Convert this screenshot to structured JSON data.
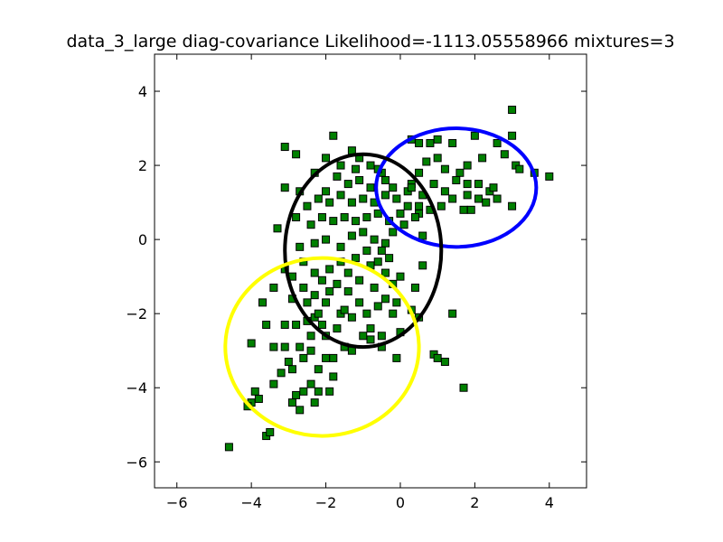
{
  "chart_data": {
    "type": "scatter",
    "title": "data_3_large diag-covariance Likelihood=-1113.05558966 mixtures=3",
    "xlabel": "",
    "ylabel": "",
    "xlim": [
      -6.6,
      5.0
    ],
    "ylim": [
      -6.7,
      5.0
    ],
    "x_ticks": [
      -6,
      -4,
      -2,
      0,
      2,
      4
    ],
    "y_ticks": [
      -6,
      -4,
      -2,
      0,
      2,
      4
    ],
    "x_tick_labels": [
      "−6",
      "−4",
      "−2",
      "0",
      "2",
      "4"
    ],
    "y_tick_labels": [
      "−6",
      "−4",
      "−2",
      "0",
      "2",
      "4"
    ],
    "grid": false,
    "marker": {
      "shape": "square",
      "fill": "#008000",
      "edge": "#000000"
    },
    "points": [
      [
        -4.6,
        -5.6
      ],
      [
        -3.6,
        -5.3
      ],
      [
        -3.5,
        -5.2
      ],
      [
        -4.0,
        -4.4
      ],
      [
        -4.1,
        -4.5
      ],
      [
        -3.8,
        -4.3
      ],
      [
        -3.9,
        -4.1
      ],
      [
        -3.4,
        -3.9
      ],
      [
        -3.2,
        -3.6
      ],
      [
        -2.9,
        -3.5
      ],
      [
        -2.7,
        -4.6
      ],
      [
        -2.9,
        -4.4
      ],
      [
        -2.8,
        -4.2
      ],
      [
        -2.6,
        -4.1
      ],
      [
        -2.4,
        -3.9
      ],
      [
        -2.2,
        -4.1
      ],
      [
        -2.3,
        -4.4
      ],
      [
        -1.9,
        -4.1
      ],
      [
        -1.8,
        -3.7
      ],
      [
        -2.2,
        -3.5
      ],
      [
        -2.6,
        -3.2
      ],
      [
        -2.4,
        -3.0
      ],
      [
        -3.4,
        -2.9
      ],
      [
        -3.1,
        -2.9
      ],
      [
        -2.7,
        -2.9
      ],
      [
        -4.0,
        -2.8
      ],
      [
        -3.6,
        -2.3
      ],
      [
        -3.7,
        -1.7
      ],
      [
        -3.1,
        -2.3
      ],
      [
        -2.8,
        -2.3
      ],
      [
        -2.3,
        -2.1
      ],
      [
        -2.1,
        -2.3
      ],
      [
        -2.4,
        -2.6
      ],
      [
        -2.0,
        -3.2
      ],
      [
        -1.5,
        -2.9
      ],
      [
        -1.0,
        -2.6
      ],
      [
        -0.8,
        -2.4
      ],
      [
        -0.5,
        -2.6
      ],
      [
        -0.1,
        -3.2
      ],
      [
        0.0,
        -2.5
      ],
      [
        0.5,
        -2.1
      ],
      [
        0.9,
        -3.1
      ],
      [
        1.0,
        -3.2
      ],
      [
        1.2,
        -3.3
      ],
      [
        1.7,
        -4.0
      ],
      [
        1.4,
        -2.0
      ],
      [
        -1.6,
        -2.0
      ],
      [
        -1.3,
        -2.1
      ],
      [
        -0.9,
        -2.0
      ],
      [
        -0.6,
        -1.8
      ],
      [
        -0.4,
        -1.6
      ],
      [
        -0.1,
        -1.7
      ],
      [
        0.3,
        -1.9
      ],
      [
        0.4,
        -1.3
      ],
      [
        -2.0,
        -1.7
      ],
      [
        -2.3,
        -1.5
      ],
      [
        -2.6,
        -1.3
      ],
      [
        -2.9,
        -1.0
      ],
      [
        -3.1,
        -0.8
      ],
      [
        -2.6,
        -0.6
      ],
      [
        -2.3,
        -0.9
      ],
      [
        -1.9,
        -0.8
      ],
      [
        -1.6,
        -0.6
      ],
      [
        -1.2,
        -0.5
      ],
      [
        -0.9,
        -0.3
      ],
      [
        -0.6,
        -0.6
      ],
      [
        -0.4,
        -0.9
      ],
      [
        -0.2,
        -1.2
      ],
      [
        0.0,
        -1.0
      ],
      [
        -1.4,
        -1.4
      ],
      [
        -1.7,
        -1.2
      ],
      [
        -2.1,
        -1.1
      ],
      [
        -1.1,
        -1.1
      ],
      [
        -0.7,
        -1.3
      ],
      [
        -2.7,
        -0.2
      ],
      [
        -2.3,
        -0.1
      ],
      [
        -2.0,
        0.0
      ],
      [
        -1.6,
        -0.2
      ],
      [
        -1.3,
        0.1
      ],
      [
        -1.0,
        0.2
      ],
      [
        -0.7,
        0.0
      ],
      [
        -0.4,
        -0.1
      ],
      [
        -0.2,
        0.2
      ],
      [
        0.1,
        0.4
      ],
      [
        0.6,
        0.1
      ],
      [
        0.6,
        -0.7
      ],
      [
        -3.3,
        0.3
      ],
      [
        -2.8,
        0.6
      ],
      [
        -2.4,
        0.4
      ],
      [
        -2.1,
        0.6
      ],
      [
        -1.8,
        0.5
      ],
      [
        -1.5,
        0.6
      ],
      [
        -1.2,
        0.5
      ],
      [
        -0.9,
        0.6
      ],
      [
        -0.6,
        0.7
      ],
      [
        -0.3,
        0.5
      ],
      [
        0.0,
        0.7
      ],
      [
        0.2,
        0.9
      ],
      [
        0.5,
        0.7
      ],
      [
        -2.5,
        0.9
      ],
      [
        -2.2,
        1.1
      ],
      [
        -1.9,
        1.0
      ],
      [
        -1.6,
        1.2
      ],
      [
        -1.3,
        1.0
      ],
      [
        -1.0,
        1.1
      ],
      [
        -0.7,
        1.0
      ],
      [
        -0.4,
        1.2
      ],
      [
        -0.1,
        1.1
      ],
      [
        0.2,
        1.3
      ],
      [
        -3.1,
        1.4
      ],
      [
        -2.7,
        1.3
      ],
      [
        -2.0,
        1.3
      ],
      [
        -1.4,
        1.5
      ],
      [
        -1.1,
        1.6
      ],
      [
        -0.8,
        1.4
      ],
      [
        -0.4,
        1.6
      ],
      [
        -0.2,
        1.4
      ],
      [
        0.3,
        1.5
      ],
      [
        -2.3,
        1.8
      ],
      [
        -1.7,
        1.7
      ],
      [
        -1.2,
        1.9
      ],
      [
        -0.8,
        2.0
      ],
      [
        -0.5,
        1.8
      ],
      [
        -2.0,
        2.2
      ],
      [
        -1.6,
        2.0
      ],
      [
        -1.8,
        2.8
      ],
      [
        -2.8,
        2.3
      ],
      [
        -3.1,
        2.5
      ],
      [
        -1.3,
        2.4
      ],
      [
        -1.1,
        2.2
      ],
      [
        -0.6,
        1.9
      ],
      [
        0.5,
        2.6
      ],
      [
        0.3,
        2.7
      ],
      [
        0.8,
        2.6
      ],
      [
        1.0,
        2.7
      ],
      [
        1.4,
        2.6
      ],
      [
        2.0,
        2.8
      ],
      [
        2.6,
        2.6
      ],
      [
        3.0,
        2.8
      ],
      [
        3.0,
        3.5
      ],
      [
        3.1,
        2.0
      ],
      [
        3.2,
        1.9
      ],
      [
        2.8,
        2.3
      ],
      [
        2.2,
        2.2
      ],
      [
        1.8,
        2.0
      ],
      [
        1.6,
        1.8
      ],
      [
        1.2,
        1.9
      ],
      [
        1.0,
        2.2
      ],
      [
        0.7,
        2.1
      ],
      [
        0.5,
        1.8
      ],
      [
        0.3,
        1.4
      ],
      [
        0.6,
        1.2
      ],
      [
        0.9,
        1.5
      ],
      [
        1.2,
        1.3
      ],
      [
        1.5,
        1.6
      ],
      [
        1.8,
        1.5
      ],
      [
        2.1,
        1.5
      ],
      [
        2.4,
        1.3
      ],
      [
        2.6,
        1.1
      ],
      [
        2.1,
        1.1
      ],
      [
        1.8,
        1.2
      ],
      [
        1.4,
        1.1
      ],
      [
        1.1,
        0.9
      ],
      [
        0.8,
        0.8
      ],
      [
        0.5,
        0.9
      ],
      [
        0.4,
        0.6
      ],
      [
        1.7,
        0.8
      ],
      [
        1.9,
        0.8
      ],
      [
        2.5,
        1.4
      ],
      [
        2.3,
        1.0
      ],
      [
        3.0,
        0.9
      ],
      [
        4.0,
        1.7
      ],
      [
        3.6,
        1.8
      ],
      [
        -1.5,
        -1.9
      ],
      [
        -1.9,
        -1.4
      ],
      [
        -2.5,
        -1.7
      ],
      [
        -1.4,
        -0.9
      ],
      [
        -0.8,
        -0.7
      ],
      [
        -0.5,
        -0.3
      ],
      [
        -0.3,
        -0.5
      ],
      [
        -0.2,
        -2.0
      ],
      [
        -1.1,
        -1.7
      ],
      [
        -2.2,
        -2.0
      ],
      [
        -2.9,
        -1.6
      ],
      [
        -3.4,
        -1.3
      ],
      [
        -0.5,
        -2.9
      ],
      [
        -0.8,
        -2.7
      ],
      [
        -3.0,
        -3.3
      ],
      [
        -1.8,
        -3.2
      ],
      [
        -1.3,
        -3.0
      ],
      [
        -2.5,
        -2.2
      ],
      [
        -1.7,
        -2.4
      ],
      [
        -2.0,
        -2.6
      ]
    ],
    "components": [
      {
        "cx": 1.5,
        "cy": 1.4,
        "rx": 2.15,
        "ry": 1.6,
        "color": "#0000ff"
      },
      {
        "cx": -1.0,
        "cy": -0.3,
        "rx": 2.1,
        "ry": 2.6,
        "color": "#000000"
      },
      {
        "cx": -2.1,
        "cy": -2.9,
        "rx": 2.6,
        "ry": 2.4,
        "color": "#ffff00"
      }
    ]
  }
}
